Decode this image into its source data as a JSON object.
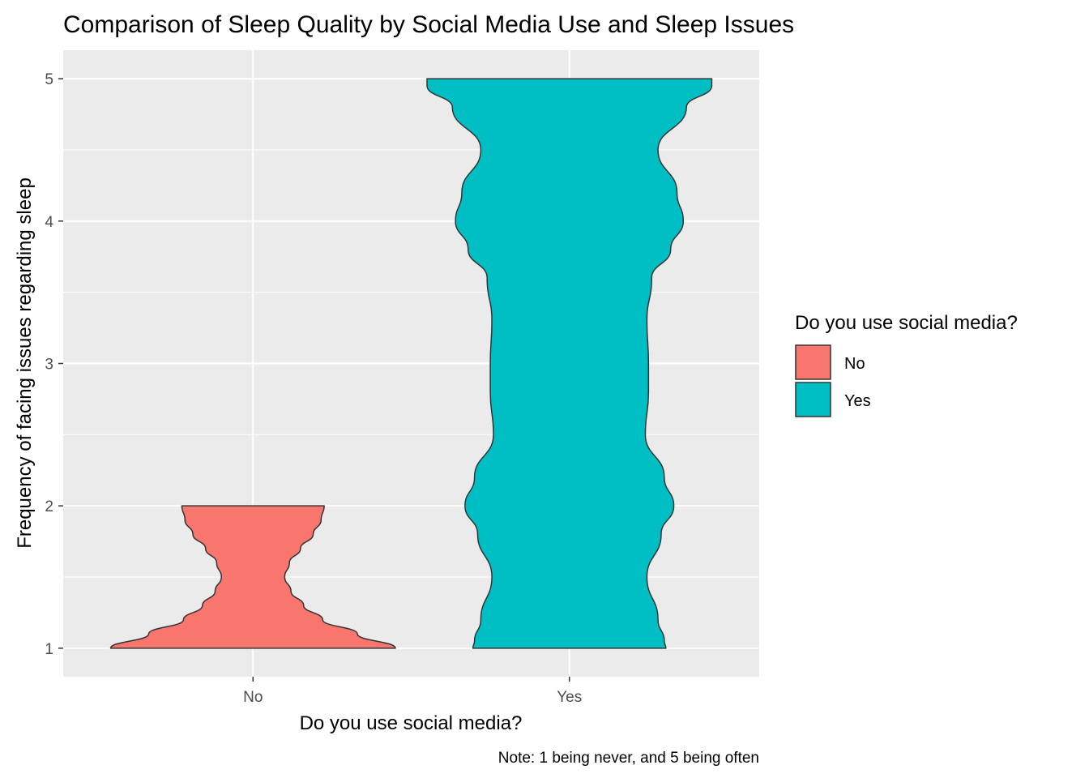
{
  "chart_data": {
    "type": "violin",
    "title": "Comparison of Sleep Quality by Social Media Use and Sleep Issues",
    "xlabel": "Do you use social media?",
    "ylabel": "Frequency of facing issues regarding sleep",
    "caption": "Note: 1 being never, and 5 being often",
    "categories": [
      "No",
      "Yes"
    ],
    "y_ticks": [
      1,
      2,
      3,
      4,
      5
    ],
    "ylim": [
      0.8,
      5.2
    ],
    "grid": true,
    "legend": {
      "title": "Do you use social media?",
      "position": "right",
      "items": [
        {
          "label": "No",
          "color": "#F8766D"
        },
        {
          "label": "Yes",
          "color": "#00BFC4"
        }
      ]
    },
    "series": [
      {
        "category": "No",
        "color": "#F8766D",
        "density_profile": [
          {
            "y": 1.0,
            "half_width": 0.45
          },
          {
            "y": 1.1,
            "half_width": 0.33
          },
          {
            "y": 1.2,
            "half_width": 0.22
          },
          {
            "y": 1.3,
            "half_width": 0.16
          },
          {
            "y": 1.4,
            "half_width": 0.12
          },
          {
            "y": 1.5,
            "half_width": 0.1
          },
          {
            "y": 1.6,
            "half_width": 0.115
          },
          {
            "y": 1.7,
            "half_width": 0.15
          },
          {
            "y": 1.8,
            "half_width": 0.19
          },
          {
            "y": 1.9,
            "half_width": 0.215
          },
          {
            "y": 2.0,
            "half_width": 0.225
          }
        ]
      },
      {
        "category": "Yes",
        "color": "#00BFC4",
        "density_profile": [
          {
            "y": 1.0,
            "half_width": 0.305
          },
          {
            "y": 1.05,
            "half_width": 0.3
          },
          {
            "y": 1.2,
            "half_width": 0.28
          },
          {
            "y": 1.5,
            "half_width": 0.245
          },
          {
            "y": 1.8,
            "half_width": 0.29
          },
          {
            "y": 2.0,
            "half_width": 0.33
          },
          {
            "y": 2.2,
            "half_width": 0.3
          },
          {
            "y": 2.5,
            "half_width": 0.24
          },
          {
            "y": 2.8,
            "half_width": 0.25
          },
          {
            "y": 3.0,
            "half_width": 0.25
          },
          {
            "y": 3.3,
            "half_width": 0.245
          },
          {
            "y": 3.6,
            "half_width": 0.26
          },
          {
            "y": 3.8,
            "half_width": 0.32
          },
          {
            "y": 4.0,
            "half_width": 0.36
          },
          {
            "y": 4.2,
            "half_width": 0.34
          },
          {
            "y": 4.5,
            "half_width": 0.28
          },
          {
            "y": 4.8,
            "half_width": 0.37
          },
          {
            "y": 4.95,
            "half_width": 0.45
          },
          {
            "y": 5.0,
            "half_width": 0.45
          }
        ]
      }
    ]
  }
}
